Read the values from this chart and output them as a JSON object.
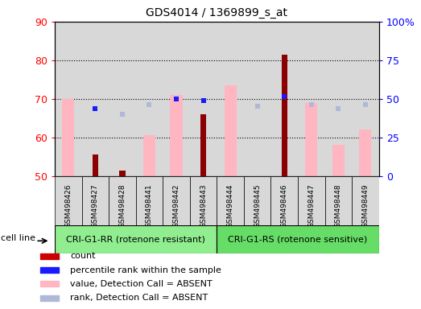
{
  "title": "GDS4014 / 1369899_s_at",
  "samples": [
    "GSM498426",
    "GSM498427",
    "GSM498428",
    "GSM498441",
    "GSM498442",
    "GSM498443",
    "GSM498444",
    "GSM498445",
    "GSM498446",
    "GSM498447",
    "GSM498448",
    "GSM498449"
  ],
  "group1_label": "CRI-G1-RR (rotenone resistant)",
  "group2_label": "CRI-G1-RS (rotenone sensitive)",
  "group_row_label": "cell line",
  "left_ylim": [
    50,
    90
  ],
  "left_yticks": [
    50,
    60,
    70,
    80,
    90
  ],
  "right_yticks": [
    0,
    25,
    50,
    75,
    100
  ],
  "right_yticklabels": [
    "0",
    "25",
    "50",
    "75",
    "100%"
  ],
  "count_values": [
    null,
    55.5,
    51.5,
    null,
    null,
    66.0,
    null,
    null,
    81.5,
    null,
    null,
    null
  ],
  "rank_values": [
    null,
    67.5,
    null,
    null,
    70.0,
    69.5,
    null,
    null,
    70.5,
    null,
    null,
    null
  ],
  "value_absent": [
    70.0,
    null,
    null,
    60.5,
    71.0,
    null,
    73.5,
    null,
    null,
    69.0,
    58.0,
    62.0
  ],
  "rank_absent": [
    null,
    null,
    66.0,
    68.5,
    null,
    null,
    null,
    68.0,
    null,
    68.5,
    67.5,
    68.5
  ],
  "count_color": "#8B0000",
  "rank_color": "#1a1aff",
  "value_absent_color": "#FFB6C1",
  "rank_absent_color": "#B0B8D8",
  "bg_color": "#D8D8D8",
  "group1_bg": "#90EE90",
  "group2_bg": "#66DD66",
  "legend_items": [
    {
      "label": "count",
      "color": "#CC0000"
    },
    {
      "label": "percentile rank within the sample",
      "color": "#1a1aff"
    },
    {
      "label": "value, Detection Call = ABSENT",
      "color": "#FFB6C1"
    },
    {
      "label": "rank, Detection Call = ABSENT",
      "color": "#B0B8D8"
    }
  ]
}
